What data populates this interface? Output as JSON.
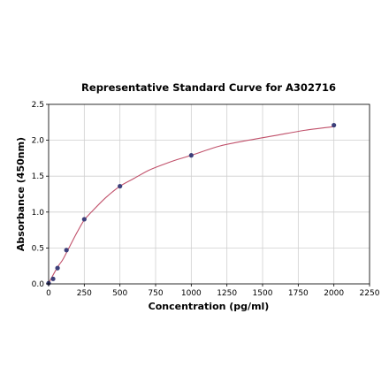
{
  "chart_data": {
    "type": "scatter",
    "title": "Representative Standard Curve for A302716",
    "xlabel": "Concentration (pg/ml)",
    "ylabel": "Absorbance (450nm)",
    "xlim": [
      0,
      2250
    ],
    "ylim": [
      0,
      2.5
    ],
    "x_ticks": [
      "0",
      "250",
      "500",
      "750",
      "1000",
      "1250",
      "1500",
      "1750",
      "2000",
      "2250"
    ],
    "y_ticks": [
      "0.0",
      "0.5",
      "1.0",
      "1.5",
      "2.0",
      "2.5"
    ],
    "grid": true,
    "series": [
      {
        "x": [
          0,
          31.25,
          62.5,
          125,
          250,
          500,
          1000,
          2000
        ],
        "y": [
          0.01,
          0.07,
          0.22,
          0.47,
          0.9,
          1.36,
          1.79,
          2.21
        ],
        "marker_color": "#3c3f7a"
      }
    ],
    "fit_curve": {
      "color": "#c0506a",
      "x": [
        0,
        25,
        50,
        75,
        100,
        150,
        200,
        250,
        300,
        400,
        500,
        600,
        700,
        800,
        900,
        1000,
        1200,
        1400,
        1600,
        1800,
        2000
      ],
      "y": [
        0.01,
        0.1,
        0.19,
        0.27,
        0.34,
        0.53,
        0.72,
        0.89,
        1.0,
        1.2,
        1.36,
        1.47,
        1.58,
        1.66,
        1.73,
        1.79,
        1.92,
        2.0,
        2.07,
        2.14,
        2.19
      ]
    }
  }
}
